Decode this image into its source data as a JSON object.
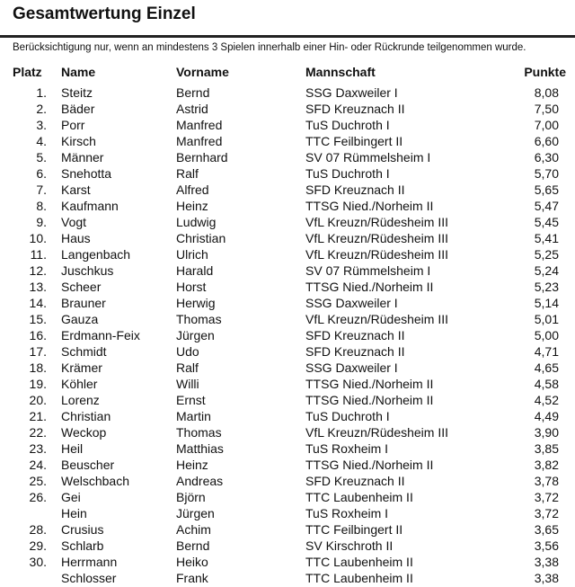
{
  "title": "Gesamtwertung Einzel",
  "note": "Berücksichtigung nur, wenn an mindestens 3 Spielen innerhalb einer Hin- oder Rückrunde teilgenommen wurde.",
  "headers": {
    "platz": "Platz",
    "name": "Name",
    "vorname": "Vorname",
    "mannschaft": "Mannschaft",
    "punkte": "Punkte"
  },
  "rows": [
    [
      "1.",
      "Steitz",
      "Bernd",
      "SSG Daxweiler I",
      "8,08"
    ],
    [
      "2.",
      "Bäder",
      "Astrid",
      "SFD Kreuznach II",
      "7,50"
    ],
    [
      "3.",
      "Porr",
      "Manfred",
      "TuS Duchroth I",
      "7,00"
    ],
    [
      "4.",
      "Kirsch",
      "Manfred",
      "TTC Feilbingert II",
      "6,60"
    ],
    [
      "5.",
      "Männer",
      "Bernhard",
      "SV 07 Rümmelsheim I",
      "6,30"
    ],
    [
      "6.",
      "Snehotta",
      "Ralf",
      "TuS Duchroth I",
      "5,70"
    ],
    [
      "7.",
      "Karst",
      "Alfred",
      "SFD Kreuznach II",
      "5,65"
    ],
    [
      "8.",
      "Kaufmann",
      "Heinz",
      "TTSG Nied./Norheim II",
      "5,47"
    ],
    [
      "9.",
      "Vogt",
      "Ludwig",
      "VfL Kreuzn/Rüdesheim III",
      "5,45"
    ],
    [
      "10.",
      "Haus",
      "Christian",
      "VfL Kreuzn/Rüdesheim III",
      "5,41"
    ],
    [
      "11.",
      "Langenbach",
      "Ulrich",
      "VfL Kreuzn/Rüdesheim III",
      "5,25"
    ],
    [
      "12.",
      "Juschkus",
      "Harald",
      "SV 07 Rümmelsheim I",
      "5,24"
    ],
    [
      "13.",
      "Scheer",
      "Horst",
      "TTSG Nied./Norheim II",
      "5,23"
    ],
    [
      "14.",
      "Brauner",
      "Herwig",
      "SSG Daxweiler I",
      "5,14"
    ],
    [
      "15.",
      "Gauza",
      "Thomas",
      "VfL Kreuzn/Rüdesheim III",
      "5,01"
    ],
    [
      "16.",
      "Erdmann-Feix",
      "Jürgen",
      "SFD Kreuznach II",
      "5,00"
    ],
    [
      "17.",
      "Schmidt",
      "Udo",
      "SFD Kreuznach II",
      "4,71"
    ],
    [
      "18.",
      "Krämer",
      "Ralf",
      "SSG Daxweiler I",
      "4,65"
    ],
    [
      "19.",
      "Köhler",
      "Willi",
      "TTSG Nied./Norheim II",
      "4,58"
    ],
    [
      "20.",
      "Lorenz",
      "Ernst",
      "TTSG Nied./Norheim II",
      "4,52"
    ],
    [
      "21.",
      "Christian",
      "Martin",
      "TuS Duchroth I",
      "4,49"
    ],
    [
      "22.",
      "Weckop",
      "Thomas",
      "VfL Kreuzn/Rüdesheim III",
      "3,90"
    ],
    [
      "23.",
      "Heil",
      "Matthias",
      "TuS Roxheim I",
      "3,85"
    ],
    [
      "24.",
      "Beuscher",
      "Heinz",
      "TTSG Nied./Norheim II",
      "3,82"
    ],
    [
      "25.",
      "Welschbach",
      "Andreas",
      "SFD Kreuznach II",
      "3,78"
    ],
    [
      "26.",
      "Gei",
      "Björn",
      "TTC Laubenheim II",
      "3,72"
    ],
    [
      "",
      "Hein",
      "Jürgen",
      "TuS Roxheim I",
      "3,72"
    ],
    [
      "28.",
      "Crusius",
      "Achim",
      "TTC Feilbingert II",
      "3,65"
    ],
    [
      "29.",
      "Schlarb",
      "Bernd",
      "SV Kirschroth II",
      "3,56"
    ],
    [
      "30.",
      "Herrmann",
      "Heiko",
      "TTC Laubenheim II",
      "3,38"
    ],
    [
      "",
      "Schlosser",
      "Frank",
      "TTC Laubenheim II",
      "3,38"
    ]
  ]
}
